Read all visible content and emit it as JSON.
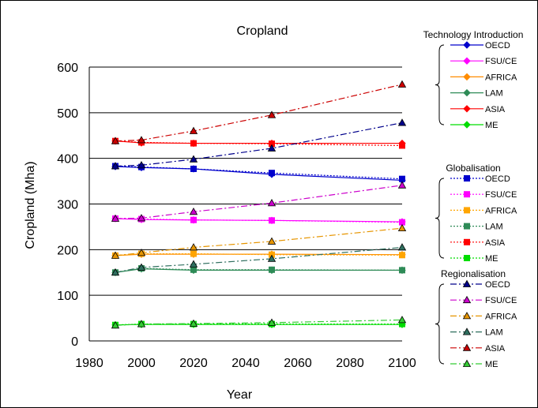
{
  "chart_data": {
    "type": "line",
    "title": "Cropland",
    "xlabel": "Year",
    "ylabel": "Cropland (Mha)",
    "xlim": [
      1980,
      2100
    ],
    "ylim": [
      0,
      600
    ],
    "xticks": [
      "1980",
      "2000",
      "2020",
      "2040",
      "2060",
      "2080",
      "2100"
    ],
    "yticks": [
      "0",
      "100",
      "200",
      "300",
      "400",
      "500",
      "600"
    ],
    "grid": "horizontal",
    "legend_position": "right",
    "x": [
      1990,
      2000,
      2020,
      2050,
      2100
    ],
    "groups": [
      {
        "name": "Technology Introduction",
        "line_style": "solid",
        "marker": "diamond",
        "series": [
          {
            "name": "OECD",
            "color": "#0000cc",
            "values": [
              382,
              380,
              377,
              365,
              352
            ]
          },
          {
            "name": "FSU/CE",
            "color": "#ff00ff",
            "values": [
              268,
              266,
              265,
              264,
              261
            ]
          },
          {
            "name": "AFRICA",
            "color": "#ff8c00",
            "values": [
              187,
              190,
              190,
              190,
              189
            ]
          },
          {
            "name": "LAM",
            "color": "#2e8b57",
            "values": [
              150,
              158,
              155,
              155,
              155
            ]
          },
          {
            "name": "ASIA",
            "color": "#ff0000",
            "values": [
              438,
              434,
              433,
              433,
              433
            ]
          },
          {
            "name": "ME",
            "color": "#00dd00",
            "values": [
              35,
              36,
              36,
              36,
              36
            ]
          }
        ]
      },
      {
        "name": "Globalisation",
        "line_style": "dotted",
        "marker": "square",
        "series": [
          {
            "name": "OECD",
            "color": "#0000cc",
            "values": [
              383,
              381,
              377,
              368,
              355
            ]
          },
          {
            "name": "FSU/CE",
            "color": "#ff00ff",
            "values": [
              268,
              267,
              265,
              264,
              260
            ]
          },
          {
            "name": "AFRICA",
            "color": "#ffa500",
            "values": [
              187,
              191,
              191,
              189,
              188
            ]
          },
          {
            "name": "LAM",
            "color": "#2e8b57",
            "values": [
              150,
              159,
              156,
              156,
              155
            ]
          },
          {
            "name": "ASIA",
            "color": "#ff0000",
            "values": [
              438,
              435,
              433,
              432,
              428
            ]
          },
          {
            "name": "ME",
            "color": "#00dd00",
            "values": [
              35,
              37,
              37,
              37,
              37
            ]
          }
        ]
      },
      {
        "name": "Regionalisation",
        "line_style": "dashdot",
        "marker": "triangle",
        "series": [
          {
            "name": "OECD",
            "color": "#00008b",
            "values": [
              383,
              385,
              398,
              422,
              478
            ]
          },
          {
            "name": "FSU/CE",
            "color": "#cc00cc",
            "values": [
              268,
              269,
              283,
              302,
              341
            ]
          },
          {
            "name": "AFRICA",
            "color": "#e69500",
            "values": [
              187,
              193,
              205,
              218,
              247
            ]
          },
          {
            "name": "LAM",
            "color": "#2f6f5f",
            "values": [
              150,
              161,
              168,
              180,
              205
            ]
          },
          {
            "name": "ASIA",
            "color": "#cc0000",
            "values": [
              438,
              440,
              460,
              495,
              562
            ]
          },
          {
            "name": "ME",
            "color": "#33cc33",
            "values": [
              34,
              37,
              38,
              40,
              46
            ]
          }
        ]
      }
    ]
  }
}
